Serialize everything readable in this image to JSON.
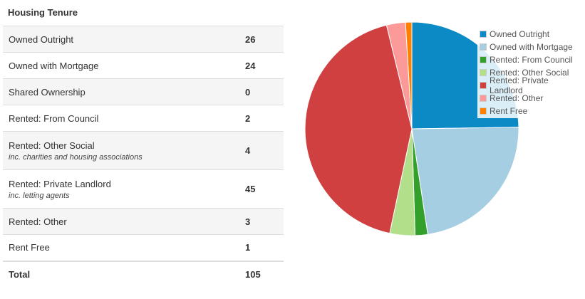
{
  "panel": {
    "title": "Housing Tenure"
  },
  "table": {
    "rows": [
      {
        "label": "Owned Outright",
        "sub": "",
        "value": "26"
      },
      {
        "label": "Owned with Mortgage",
        "sub": "",
        "value": "24"
      },
      {
        "label": "Shared Ownership",
        "sub": "",
        "value": "0"
      },
      {
        "label": "Rented: From Council",
        "sub": "",
        "value": "2"
      },
      {
        "label": "Rented: Other Social",
        "sub": "inc. charities and housing associations",
        "value": "4"
      },
      {
        "label": "Rented: Private Landlord",
        "sub": "inc. letting agents",
        "value": "45"
      },
      {
        "label": "Rented: Other",
        "sub": "",
        "value": "3"
      },
      {
        "label": "Rent Free",
        "sub": "",
        "value": "1"
      }
    ],
    "total": {
      "label": "Total",
      "value": "105"
    }
  },
  "chart_data": {
    "type": "pie",
    "legend_position": "top-right",
    "slices": [
      {
        "name": "Owned Outright",
        "value": 26,
        "color": "#0c8ac6"
      },
      {
        "name": "Owned with Mortgage",
        "value": 24,
        "color": "#a6cee3"
      },
      {
        "name": "Rented: From Council",
        "value": 2,
        "color": "#33a02c"
      },
      {
        "name": "Rented: Other Social",
        "value": 4,
        "color": "#b2df8a"
      },
      {
        "name": "Rented: Private Landlord",
        "value": 45,
        "color": "#d04040"
      },
      {
        "name": "Rented: Other",
        "value": 3,
        "color": "#fb9a99"
      },
      {
        "name": "Rent Free",
        "value": 1,
        "color": "#ff7f00"
      }
    ]
  }
}
